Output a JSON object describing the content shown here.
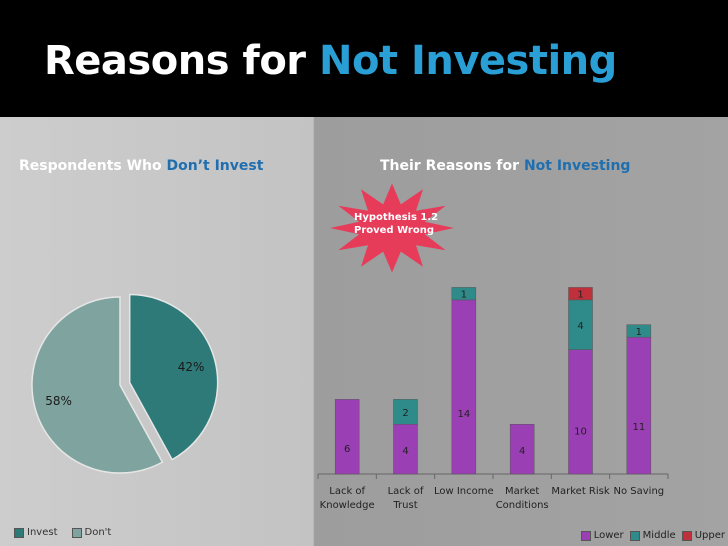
{
  "slide": {
    "title_plain": "Reasons for",
    "title_accent": "Not Investing",
    "left_title_plain": "Respondents Who",
    "left_title_accent": "Don’t Invest",
    "right_title_plain": "Their Reasons for",
    "right_title_accent": "Not Investing",
    "star_line1": "Hypothesis 1.2",
    "star_line2": "Proved Wrong"
  },
  "colors": {
    "invest": "#2e7a78",
    "dont": "#7fa49f",
    "lower": "#9b3fb5",
    "middle": "#2f8a8a",
    "upper": "#c0303a",
    "star": "#e73b5a"
  },
  "chart_data": [
    {
      "type": "pie",
      "title": "",
      "categories": [
        "Invest",
        "Don't"
      ],
      "values": [
        42,
        58
      ],
      "data_labels": [
        "42%",
        "58%"
      ],
      "legend": {
        "entries": [
          "Invest",
          "Don't"
        ],
        "position": "bottom-left"
      }
    },
    {
      "type": "bar",
      "stacked": true,
      "title": "",
      "categories": [
        [
          "Lack of",
          "Knowledge"
        ],
        [
          "Lack of",
          "Trust"
        ],
        [
          "Low Income"
        ],
        [
          "Market",
          "Conditions"
        ],
        [
          "Market Risk"
        ],
        [
          "No Saving"
        ]
      ],
      "series": [
        {
          "name": "Lower",
          "values": [
            6,
            4,
            14,
            4,
            10,
            11
          ]
        },
        {
          "name": "Middle",
          "values": [
            0,
            2,
            1,
            0,
            4,
            1
          ]
        },
        {
          "name": "Upper",
          "values": [
            0,
            0,
            0,
            0,
            1,
            0
          ]
        }
      ],
      "ylim": [
        0,
        16
      ],
      "grid": false,
      "legend": {
        "entries": [
          "Lower",
          "Middle",
          "Upper"
        ],
        "position": "bottom-right"
      }
    }
  ]
}
